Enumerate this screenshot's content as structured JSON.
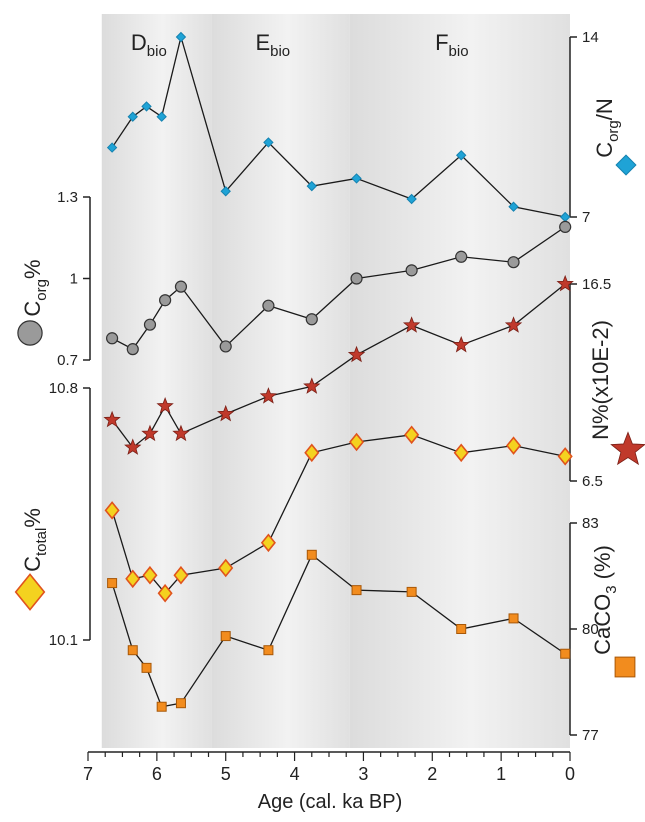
{
  "chart_data": {
    "type": "line",
    "title": "",
    "xlabel": "Age (cal. ka BP)",
    "xlim": [
      7,
      0
    ],
    "x_ticks": [
      "7",
      "6",
      "5",
      "4",
      "3",
      "2",
      "1",
      "0"
    ],
    "x_reversed": true,
    "zones": [
      {
        "label_main": "D",
        "label_sub": "bio",
        "from": 6.8,
        "to": 5.2
      },
      {
        "label_main": "E",
        "label_sub": "bio",
        "from": 5.2,
        "to": 3.2
      },
      {
        "label_main": "F",
        "label_sub": "bio",
        "from": 3.2,
        "to": 0.0
      }
    ],
    "panels": [
      {
        "id": "corg_n",
        "label_main": "C",
        "label_sub": "org",
        "label_suffix": "/N",
        "axis_side": "right",
        "ylim": [
          7,
          14
        ],
        "ticks": [
          "7",
          "14"
        ],
        "marker": "diamond",
        "color": "#1fa3d6",
        "stroke": "#1582b0",
        "x": [
          6.65,
          6.35,
          6.15,
          5.93,
          5.65,
          5.0,
          4.38,
          3.75,
          3.1,
          2.3,
          1.58,
          0.82,
          0.07
        ],
        "y": [
          9.7,
          10.9,
          11.3,
          10.9,
          14.0,
          8.0,
          9.9,
          8.2,
          8.5,
          7.7,
          9.4,
          7.4,
          7.0
        ]
      },
      {
        "id": "corg",
        "label_main": "C",
        "label_sub": "org",
        "label_suffix": "%",
        "axis_side": "left",
        "ylim": [
          0.7,
          1.3
        ],
        "ticks": [
          "0.7",
          "1",
          "1.3"
        ],
        "marker": "circle",
        "color": "#9a9a9a",
        "stroke": "#333333",
        "x": [
          6.65,
          6.35,
          6.1,
          5.88,
          5.65,
          5.0,
          4.38,
          3.75,
          3.1,
          2.3,
          1.58,
          0.82,
          0.07
        ],
        "y": [
          0.78,
          0.74,
          0.83,
          0.92,
          0.97,
          0.75,
          0.9,
          0.85,
          1.0,
          1.03,
          1.08,
          1.06,
          1.19
        ]
      },
      {
        "id": "n",
        "label_main": "N%(x10E-2)",
        "label_sub": "",
        "label_suffix": "",
        "axis_side": "right",
        "ylim": [
          6.5,
          16.5
        ],
        "ticks": [
          "6.5",
          "16.5"
        ],
        "marker": "star",
        "color": "#c0392b",
        "stroke": "#7a1f16",
        "x": [
          6.65,
          6.35,
          6.1,
          5.88,
          5.65,
          5.0,
          4.38,
          3.75,
          3.1,
          2.3,
          1.58,
          0.82,
          0.07
        ],
        "y": [
          9.6,
          8.2,
          8.9,
          10.3,
          8.9,
          9.9,
          10.8,
          11.3,
          12.9,
          14.4,
          13.4,
          14.4,
          16.5
        ]
      },
      {
        "id": "ctotal",
        "label_main": "C",
        "label_sub": "total",
        "label_suffix": "%",
        "axis_side": "left",
        "ylim": [
          10.1,
          10.8
        ],
        "ticks": [
          "10.1",
          "10.8"
        ],
        "marker": "diamond-big",
        "color": "#f4d21f",
        "stroke": "#e0531d",
        "x": [
          6.65,
          6.35,
          6.1,
          5.88,
          5.65,
          5.0,
          4.38,
          3.75,
          3.1,
          2.3,
          1.58,
          0.82,
          0.07
        ],
        "y": [
          10.46,
          10.27,
          10.28,
          10.23,
          10.28,
          10.3,
          10.37,
          10.62,
          10.65,
          10.67,
          10.62,
          10.64,
          10.61
        ]
      },
      {
        "id": "caco3",
        "label_main": "CaCO",
        "label_sub": "3",
        "label_suffix": " (%)",
        "axis_side": "right",
        "ylim": [
          77,
          83
        ],
        "ticks": [
          "77",
          "80",
          "83"
        ],
        "marker": "square",
        "color": "#f28c1e",
        "stroke": "#a85808",
        "x": [
          6.65,
          6.35,
          6.15,
          5.93,
          5.65,
          5.0,
          4.38,
          3.75,
          3.1,
          2.3,
          1.58,
          0.82,
          0.07
        ],
        "y": [
          81.3,
          79.4,
          78.9,
          77.8,
          77.9,
          79.8,
          79.4,
          82.1,
          81.1,
          81.05,
          80.0,
          80.3,
          79.3
        ]
      }
    ]
  }
}
